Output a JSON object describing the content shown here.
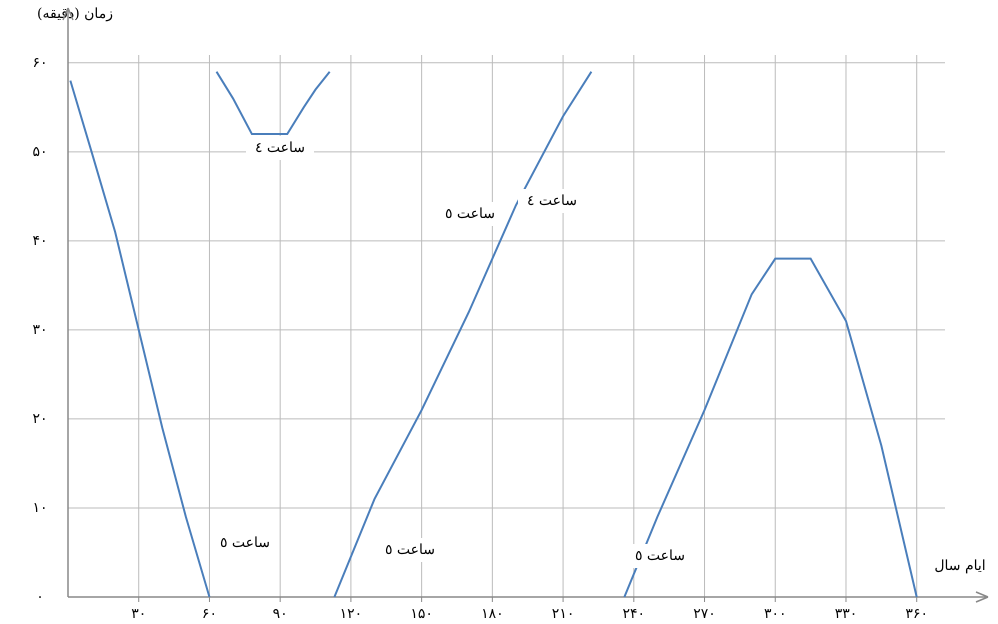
{
  "chart_data": {
    "type": "line",
    "y_label": "زمان (دقیقه)",
    "x_label": "ایام سال",
    "x": [
      1,
      10,
      20,
      30,
      40,
      50,
      60,
      62,
      63,
      70,
      78,
      93,
      100,
      105,
      111,
      112,
      113,
      130,
      150,
      170,
      190,
      210,
      222,
      228,
      236,
      250,
      270,
      290,
      300,
      315,
      330,
      345,
      360
    ],
    "series": [
      {
        "color": "#4a7ebb",
        "values": [
          58,
          50,
          41,
          30,
          19,
          9,
          0,
          null,
          59,
          56,
          52,
          52,
          55,
          57,
          59,
          null,
          0,
          11,
          21,
          32,
          44,
          54,
          59,
          null,
          0,
          9,
          21,
          34,
          38,
          38,
          31,
          17,
          0
        ]
      }
    ],
    "annotations": [
      "ساعت ٤",
      "ساعت ٥",
      "ساعت ٤",
      "ساعت ٥",
      "ساعت ٥",
      "ساعت ٥"
    ],
    "xlim": [
      0,
      372
    ],
    "ylim": [
      0,
      62
    ],
    "xticks": [
      {
        "value": 30,
        "label": "۳۰"
      },
      {
        "value": 60,
        "label": "۶۰"
      },
      {
        "value": 90,
        "label": "۹۰"
      },
      {
        "value": 120,
        "label": "۱۲۰"
      },
      {
        "value": 150,
        "label": "۱۵۰"
      },
      {
        "value": 180,
        "label": "۱۸۰"
      },
      {
        "value": 210,
        "label": "۲۱۰"
      },
      {
        "value": 240,
        "label": "۲۴۰"
      },
      {
        "value": 270,
        "label": "۲۷۰"
      },
      {
        "value": 300,
        "label": "۳۰۰"
      },
      {
        "value": 330,
        "label": "۳۳۰"
      },
      {
        "value": 360,
        "label": "۳۶۰"
      }
    ],
    "yticks": [
      {
        "value": 0,
        "label": "۰"
      },
      {
        "value": 10,
        "label": "۱۰"
      },
      {
        "value": 20,
        "label": "۲۰"
      },
      {
        "value": 30,
        "label": "۳۰"
      },
      {
        "value": 40,
        "label": "۴۰"
      },
      {
        "value": 50,
        "label": "۵۰"
      },
      {
        "value": 60,
        "label": "۶۰"
      }
    ],
    "grid": true
  }
}
